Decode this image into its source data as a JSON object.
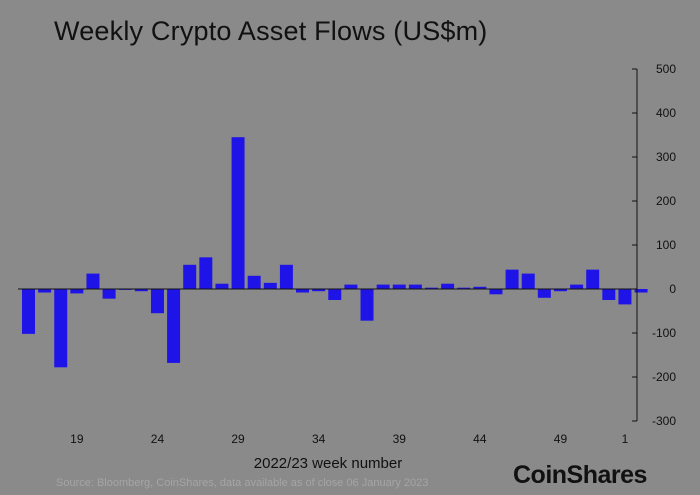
{
  "chart_data": {
    "type": "bar",
    "title": "Weekly Crypto Asset Flows (US$m)",
    "xlabel": "2022/23 week number",
    "ylabel": "",
    "ylim": [
      -300,
      500
    ],
    "yticks": [
      500,
      400,
      300,
      200,
      100,
      0,
      -100,
      -200,
      -300
    ],
    "xtick_labels": [
      "19",
      "24",
      "29",
      "34",
      "39",
      "44",
      "49",
      "1"
    ],
    "xtick_weeks": [
      19,
      24,
      29,
      34,
      39,
      44,
      49,
      53
    ],
    "bar_color": "#1f14e8",
    "weeks": [
      16,
      17,
      18,
      19,
      20,
      21,
      22,
      23,
      24,
      25,
      26,
      27,
      28,
      29,
      30,
      31,
      32,
      33,
      34,
      35,
      36,
      37,
      38,
      39,
      40,
      41,
      42,
      43,
      44,
      45,
      46,
      47,
      48,
      49,
      50,
      51,
      52,
      53,
      54
    ],
    "values": [
      -102,
      -8,
      -178,
      -10,
      35,
      -22,
      -2,
      -5,
      -55,
      -168,
      55,
      72,
      12,
      345,
      30,
      14,
      55,
      -8,
      -5,
      -25,
      10,
      -72,
      10,
      10,
      10,
      3,
      12,
      3,
      5,
      -12,
      44,
      35,
      -20,
      -5,
      10,
      44,
      -25,
      -35,
      -8
    ]
  },
  "source": "Source: Bloomberg, CoinShares, data available as of close 06 January 2023",
  "logo": "CoinShares"
}
